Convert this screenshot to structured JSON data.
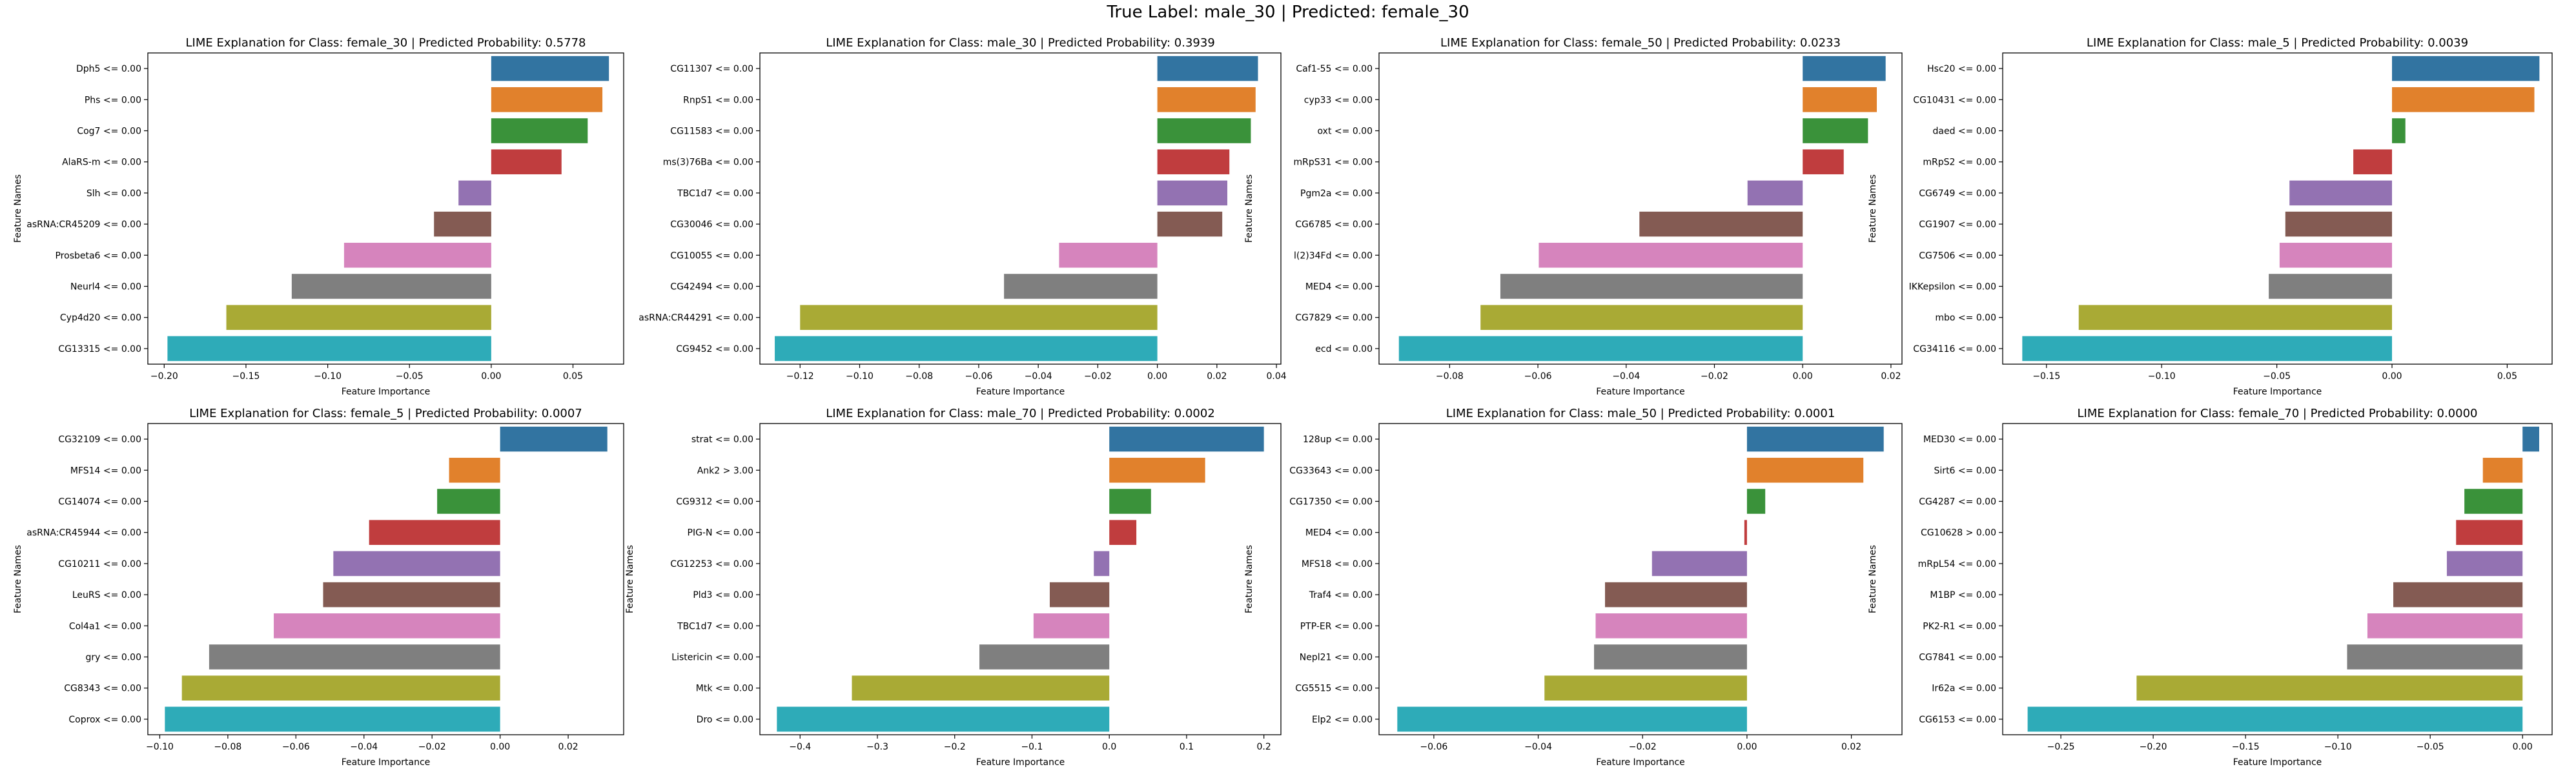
{
  "figure": {
    "suptitle": "True Label: male_30 | Predicted: female_30"
  },
  "chart_data": [
    {
      "type": "bar",
      "orientation": "horizontal",
      "title": "LIME Explanation for Class: female_30 | Predicted Probability: 0.5778",
      "xlabel": "Feature Importance",
      "ylabel": "Feature Names",
      "xlim": [
        -0.21,
        0.081
      ],
      "xticks": [
        -0.2,
        -0.15,
        -0.1,
        -0.05,
        0.0,
        0.05
      ],
      "xtick_labels": [
        "−0.20",
        "−0.15",
        "−0.10",
        "−0.05",
        "0.00",
        "0.05"
      ],
      "categories": [
        "Dph5 <= 0.00",
        "Phs <= 0.00",
        "Cog7 <= 0.00",
        "AlaRS-m <= 0.00",
        "Slh <= 0.00",
        "asRNA:CR45209 <= 0.00",
        "Prosbeta6 <= 0.00",
        "Neurl4 <= 0.00",
        "Cyp4d20 <= 0.00",
        "CG13315 <= 0.00"
      ],
      "values": [
        0.072,
        0.068,
        0.059,
        0.043,
        -0.02,
        -0.035,
        -0.09,
        -0.122,
        -0.162,
        -0.198
      ]
    },
    {
      "type": "bar",
      "orientation": "horizontal",
      "title": "LIME Explanation for Class: male_30 | Predicted Probability: 0.3939",
      "xlabel": "Feature Importance",
      "ylabel": "",
      "xlim": [
        -0.1335,
        0.0415
      ],
      "xticks": [
        -0.12,
        -0.1,
        -0.08,
        -0.06,
        -0.04,
        -0.02,
        0.0,
        0.02,
        0.04
      ],
      "xtick_labels": [
        "−0.12",
        "−0.10",
        "−0.08",
        "−0.06",
        "−0.04",
        "−0.02",
        "0.00",
        "0.02",
        "0.04"
      ],
      "categories": [
        "CG11307 <= 0.00",
        "RnpS1 <= 0.00",
        "CG11583 <= 0.00",
        "ms(3)76Ba <= 0.00",
        "TBC1d7 <= 0.00",
        "CG30046 <= 0.00",
        "CG10055 <= 0.00",
        "CG42494 <= 0.00",
        "asRNA:CR44291 <= 0.00",
        "CG9452 <= 0.00"
      ],
      "values": [
        0.0338,
        0.033,
        0.0314,
        0.0242,
        0.0235,
        0.0218,
        -0.033,
        -0.0515,
        -0.12,
        -0.1285
      ]
    },
    {
      "type": "bar",
      "orientation": "horizontal",
      "title": "LIME Explanation for Class: female_50 | Predicted Probability: 0.0233",
      "xlabel": "Feature Importance",
      "ylabel": "Feature Names",
      "xlim": [
        -0.096,
        0.0225
      ],
      "xticks": [
        -0.08,
        -0.06,
        -0.04,
        -0.02,
        0.0,
        0.02
      ],
      "xtick_labels": [
        "−0.08",
        "−0.06",
        "−0.04",
        "−0.02",
        "0.00",
        "0.02"
      ],
      "categories": [
        "Caf1-55 <= 0.00",
        "cyp33 <= 0.00",
        "oxt <= 0.00",
        "mRpS31 <= 0.00",
        "Pgm2a <= 0.00",
        "CG6785 <= 0.00",
        "l(2)34Fd <= 0.00",
        "MED4 <= 0.00",
        "CG7829 <= 0.00",
        "ecd <= 0.00"
      ],
      "values": [
        0.0188,
        0.0168,
        0.0148,
        0.0093,
        -0.0125,
        -0.037,
        -0.0598,
        -0.0685,
        -0.073,
        -0.0915
      ]
    },
    {
      "type": "bar",
      "orientation": "horizontal",
      "title": "LIME Explanation for Class: male_5 | Predicted Probability: 0.0039",
      "xlabel": "Feature Importance",
      "ylabel": "Feature Names",
      "xlim": [
        -0.169,
        0.0695
      ],
      "xticks": [
        -0.15,
        -0.1,
        -0.05,
        0.0,
        0.05
      ],
      "xtick_labels": [
        "−0.15",
        "−0.10",
        "−0.05",
        "0.00",
        "0.05"
      ],
      "categories": [
        "Hsc20 <= 0.00",
        "CG10431 <= 0.00",
        "daed <= 0.00",
        "mRpS2 <= 0.00",
        "CG6749 <= 0.00",
        "CG1907 <= 0.00",
        "CG7506 <= 0.00",
        "IKKepsilon <= 0.00",
        "mbo <= 0.00",
        "CG34116 <= 0.00"
      ],
      "values": [
        0.064,
        0.0618,
        0.0058,
        -0.0168,
        -0.0445,
        -0.0463,
        -0.0488,
        -0.0535,
        -0.136,
        -0.1605
      ]
    },
    {
      "type": "bar",
      "orientation": "horizontal",
      "title": "LIME Explanation for Class: female_5 | Predicted Probability: 0.0007",
      "xlabel": "Feature Importance",
      "ylabel": "Feature Names",
      "xlim": [
        -0.1035,
        0.0363
      ],
      "xticks": [
        -0.1,
        -0.08,
        -0.06,
        -0.04,
        -0.02,
        0.0,
        0.02
      ],
      "xtick_labels": [
        "−0.10",
        "−0.08",
        "−0.06",
        "−0.04",
        "−0.02",
        "0.00",
        "0.02"
      ],
      "categories": [
        "CG32109 <= 0.00",
        "MFS14 <= 0.00",
        "CG14074 <= 0.00",
        "asRNA:CR45944 <= 0.00",
        "CG10211 <= 0.00",
        "LeuRS <= 0.00",
        "Col4a1 <= 0.00",
        "gry <= 0.00",
        "CG8343 <= 0.00",
        "Coprox <= 0.00"
      ],
      "values": [
        0.0315,
        -0.015,
        -0.0185,
        -0.0385,
        -0.049,
        -0.052,
        -0.0665,
        -0.0855,
        -0.0935,
        -0.0985
      ]
    },
    {
      "type": "bar",
      "orientation": "horizontal",
      "title": "LIME Explanation for Class: male_70 | Predicted Probability: 0.0002",
      "xlabel": "Feature Importance",
      "ylabel": "Feature Names",
      "xlim": [
        -0.452,
        0.222
      ],
      "xticks": [
        -0.4,
        -0.3,
        -0.2,
        -0.1,
        0.0,
        0.1,
        0.2
      ],
      "xtick_labels": [
        "−0.4",
        "−0.3",
        "−0.2",
        "−0.1",
        "0.0",
        "0.1",
        "0.2"
      ],
      "categories": [
        "strat <= 0.00",
        "Ank2 > 3.00",
        "CG9312 <= 0.00",
        "PIG-N <= 0.00",
        "CG12253 <= 0.00",
        "Pld3 <= 0.00",
        "TBC1d7 <= 0.00",
        "Listericin <= 0.00",
        "Mtk <= 0.00",
        "Dro <= 0.00"
      ],
      "values": [
        0.2,
        0.124,
        0.054,
        0.035,
        -0.02,
        -0.077,
        -0.098,
        -0.168,
        -0.333,
        -0.43
      ]
    },
    {
      "type": "bar",
      "orientation": "horizontal",
      "title": "LIME Explanation for Class: male_50 | Predicted Probability: 0.0001",
      "xlabel": "Feature Importance",
      "ylabel": "Feature Names",
      "xlim": [
        -0.0705,
        0.0297
      ],
      "xticks": [
        -0.06,
        -0.04,
        -0.02,
        0.0,
        0.02
      ],
      "xtick_labels": [
        "−0.06",
        "−0.04",
        "−0.02",
        "0.00",
        "0.02"
      ],
      "categories": [
        "128up <= 0.00",
        "CG33643 <= 0.00",
        "CG17350 <= 0.00",
        "MED4 <= 0.00",
        "MFS18 <= 0.00",
        "Traf4 <= 0.00",
        "PTP-ER <= 0.00",
        "Nepl21 <= 0.00",
        "CG5515 <= 0.00",
        "Elp2 <= 0.00"
      ],
      "values": [
        0.0262,
        0.0223,
        0.0035,
        -0.0005,
        -0.0182,
        -0.0272,
        -0.029,
        -0.0293,
        -0.0388,
        -0.067
      ]
    },
    {
      "type": "bar",
      "orientation": "horizontal",
      "title": "LIME Explanation for Class: female_70 | Predicted Probability: 0.0000",
      "xlabel": "Feature Importance",
      "ylabel": "Feature Names",
      "xlim": [
        -0.2815,
        0.016
      ],
      "xticks": [
        -0.25,
        -0.2,
        -0.15,
        -0.1,
        -0.05,
        0.0
      ],
      "xtick_labels": [
        "−0.25",
        "−0.20",
        "−0.15",
        "−0.10",
        "−0.05",
        "0.00"
      ],
      "categories": [
        "MED30 <= 0.00",
        "Sirt6 <= 0.00",
        "CG4287 <= 0.00",
        "CG10628 > 0.00",
        "mRpL54 <= 0.00",
        "M1BP <= 0.00",
        "PK2-R1 <= 0.00",
        "CG7841 <= 0.00",
        "Ir62a <= 0.00",
        "CG6153 <= 0.00"
      ],
      "values": [
        0.009,
        -0.0215,
        -0.0315,
        -0.036,
        -0.041,
        -0.07,
        -0.084,
        -0.095,
        -0.209,
        -0.268
      ]
    }
  ],
  "colors": {
    "bars": [
      "#3274a1",
      "#e1812c",
      "#3a923a",
      "#c03d3e",
      "#9372b2",
      "#845b53",
      "#d684bd",
      "#7f7f7f",
      "#a9aa35",
      "#2eabb8"
    ],
    "axis": "#000000",
    "background": "#ffffff"
  }
}
